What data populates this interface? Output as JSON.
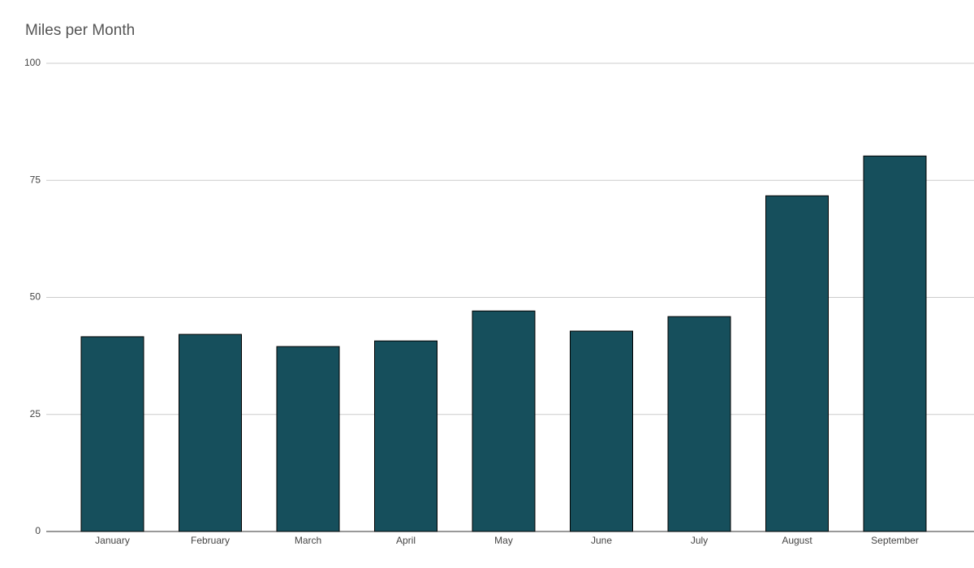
{
  "chart_data": {
    "type": "bar",
    "title": "Miles per Month",
    "categories": [
      "January",
      "February",
      "March",
      "April",
      "May",
      "June",
      "July",
      "August",
      "September"
    ],
    "values": [
      41.6,
      42.1,
      39.5,
      40.7,
      47.1,
      42.8,
      45.9,
      71.7,
      80.2
    ],
    "color": "#164f5c",
    "ylim": [
      0,
      100
    ],
    "yticks": [
      0,
      25,
      50,
      75,
      100
    ],
    "grid": true
  }
}
